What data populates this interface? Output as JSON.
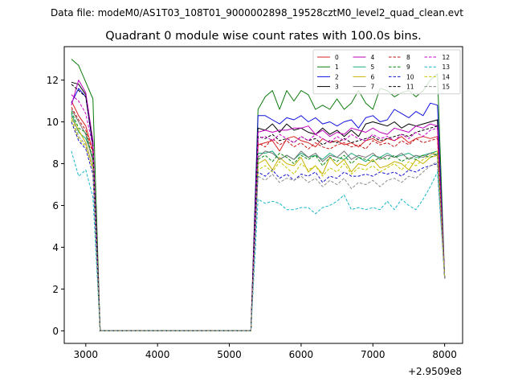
{
  "figure": {
    "suptitle": "Data file: modeM0/AS1T03_108T01_9000002898_19528cztM0_level2_quad_clean.evt"
  },
  "chart_data": {
    "type": "line",
    "title": "Quadrant 0 module wise count rates with 100.0s bins.",
    "xlabel": "",
    "ylabel": "",
    "x_offset_label": "+2.9509e8",
    "xlim": [
      2700,
      8250
    ],
    "ylim": [
      -0.6,
      13.6
    ],
    "x_ticks": [
      3000,
      4000,
      5000,
      6000,
      7000,
      8000
    ],
    "x_tick_labels": [
      "3000",
      "4000",
      "5000",
      "6000",
      "7000",
      "8000"
    ],
    "y_ticks": [
      0,
      2,
      4,
      6,
      8,
      10,
      12
    ],
    "y_tick_labels": [
      "0",
      "2",
      "4",
      "6",
      "8",
      "10",
      "12"
    ],
    "legend_position": "top-right",
    "legend_columns": 4,
    "gap": {
      "start": 3200,
      "end": 5300,
      "value": 0
    },
    "end_values": {
      "x": 8000,
      "value": 2.5
    },
    "x_seg1": [
      2800,
      2900,
      3000,
      3100
    ],
    "x_seg2": [
      5400,
      5500,
      5600,
      5700,
      5800,
      5900,
      6000,
      6100,
      6200,
      6300,
      6400,
      6500,
      6600,
      6700,
      6800,
      6900,
      7000,
      7100,
      7200,
      7300,
      7400,
      7500,
      7600,
      7700,
      7800,
      7900
    ],
    "series": [
      {
        "name": "0",
        "color": "#d62020",
        "dash": "solid",
        "seg1": [
          11.0,
          10.3,
          9.8,
          8.6
        ],
        "seg2": [
          8.9,
          9.0,
          9.1,
          8.6,
          9.2,
          9.3,
          9.1,
          9.0,
          8.8,
          9.2,
          9.0,
          9.1,
          8.9,
          9.0,
          8.8,
          9.1,
          9.2,
          9.0,
          9.2,
          9.1,
          9.3,
          9.0,
          9.2,
          9.3,
          9.2,
          9.3
        ]
      },
      {
        "name": "1",
        "color": "#0a7a0a",
        "dash": "solid",
        "seg1": [
          13.0,
          12.7,
          11.9,
          11.1
        ],
        "seg2": [
          10.6,
          11.2,
          11.5,
          10.6,
          11.5,
          11.0,
          11.5,
          11.3,
          10.6,
          10.8,
          10.6,
          11.1,
          10.6,
          10.9,
          11.5,
          10.9,
          10.6,
          11.6,
          11.5,
          11.2,
          11.4,
          11.5,
          11.2,
          11.5,
          12.0,
          12.3
        ]
      },
      {
        "name": "2",
        "color": "#1010e0",
        "dash": "solid",
        "seg1": [
          10.9,
          11.6,
          11.2,
          8.8
        ],
        "seg2": [
          10.3,
          10.3,
          10.1,
          9.9,
          10.2,
          10.1,
          10.3,
          10.0,
          10.2,
          9.9,
          10.0,
          9.8,
          10.0,
          10.1,
          9.7,
          10.2,
          10.3,
          10.0,
          10.1,
          10.6,
          10.4,
          10.2,
          10.5,
          10.3,
          10.9,
          10.8
        ]
      },
      {
        "name": "3",
        "color": "#000000",
        "dash": "solid",
        "seg1": [
          11.9,
          11.8,
          11.3,
          9.0
        ],
        "seg2": [
          9.7,
          9.6,
          9.9,
          9.5,
          9.9,
          9.6,
          9.7,
          9.5,
          9.4,
          9.7,
          9.4,
          9.6,
          9.3,
          9.6,
          9.3,
          9.9,
          10.0,
          9.9,
          9.8,
          10.0,
          9.7,
          9.9,
          9.8,
          9.9,
          10.0,
          10.1
        ]
      },
      {
        "name": "4",
        "color": "#bb00bb",
        "dash": "solid",
        "seg1": [
          10.8,
          12.0,
          11.4,
          9.1
        ],
        "seg2": [
          9.5,
          9.6,
          9.5,
          9.6,
          9.6,
          9.7,
          9.7,
          9.8,
          9.4,
          9.6,
          9.3,
          9.5,
          9.4,
          9.7,
          9.6,
          9.5,
          9.7,
          9.5,
          9.4,
          9.7,
          9.6,
          9.5,
          9.8,
          9.7,
          9.9,
          9.8
        ]
      },
      {
        "name": "5",
        "color": "#1aaa7a",
        "dash": "solid",
        "seg1": [
          10.4,
          9.5,
          9.2,
          8.3
        ],
        "seg2": [
          8.5,
          8.5,
          8.6,
          8.2,
          8.4,
          8.2,
          8.5,
          8.3,
          8.4,
          8.2,
          8.5,
          8.3,
          8.2,
          8.5,
          8.3,
          8.1,
          8.4,
          8.3,
          8.5,
          8.3,
          8.4,
          8.5,
          8.3,
          8.4,
          8.5,
          8.6
        ]
      },
      {
        "name": "6",
        "color": "#c9b200",
        "dash": "solid",
        "seg1": [
          10.2,
          9.6,
          9.0,
          7.8
        ],
        "seg2": [
          8.0,
          8.2,
          7.7,
          8.3,
          8.0,
          7.9,
          8.3,
          7.6,
          7.9,
          7.5,
          8.3,
          7.9,
          8.2,
          7.6,
          8.0,
          7.9,
          8.2,
          7.8,
          7.9,
          8.1,
          8.0,
          7.7,
          8.2,
          8.0,
          8.3,
          8.4
        ]
      },
      {
        "name": "7",
        "color": "#707070",
        "dash": "solid",
        "seg1": [
          10.6,
          10.0,
          9.4,
          8.1
        ],
        "seg2": [
          8.3,
          8.6,
          8.5,
          8.2,
          8.4,
          8.2,
          8.6,
          8.3,
          8.5,
          8.1,
          8.4,
          8.3,
          8.6,
          8.2,
          8.4,
          8.3,
          8.5,
          8.2,
          8.4,
          8.3,
          8.5,
          8.2,
          8.4,
          8.3,
          8.5,
          8.4
        ]
      },
      {
        "name": "8",
        "color": "#c41414",
        "dash": "dashed",
        "seg1": [
          10.7,
          10.1,
          9.6,
          8.5
        ],
        "seg2": [
          9.0,
          8.8,
          9.2,
          8.9,
          9.1,
          8.8,
          9.0,
          8.7,
          9.0,
          8.8,
          8.7,
          8.9,
          9.0,
          8.8,
          8.9,
          8.7,
          9.1,
          8.9,
          9.0,
          8.8,
          9.1,
          8.9,
          9.2,
          9.0,
          9.1,
          9.2
        ]
      },
      {
        "name": "9",
        "color": "#0d8a0d",
        "dash": "dashed",
        "seg1": [
          10.5,
          9.7,
          9.5,
          8.2
        ],
        "seg2": [
          8.2,
          8.4,
          8.1,
          8.5,
          8.3,
          8.0,
          8.4,
          8.2,
          8.4,
          7.9,
          8.3,
          8.1,
          8.4,
          8.0,
          8.3,
          8.2,
          8.1,
          8.3,
          8.2,
          8.4,
          8.1,
          8.3,
          8.2,
          8.4,
          8.3,
          8.5
        ]
      },
      {
        "name": "10",
        "color": "#1414cc",
        "dash": "dashed",
        "seg1": [
          10.0,
          9.1,
          8.7,
          7.5
        ],
        "seg2": [
          7.6,
          7.4,
          7.7,
          7.3,
          7.5,
          7.2,
          7.5,
          7.4,
          7.6,
          7.1,
          7.4,
          7.3,
          7.6,
          7.4,
          7.4,
          7.5,
          7.4,
          7.6,
          7.5,
          7.6,
          7.4,
          7.7,
          7.6,
          7.8,
          7.9,
          8.0
        ]
      },
      {
        "name": "11",
        "color": "#000000",
        "dash": "dashed",
        "seg1": [
          11.8,
          11.5,
          11.2,
          8.9
        ],
        "seg2": [
          9.3,
          9.2,
          9.4,
          9.1,
          9.2,
          9.0,
          9.3,
          9.1,
          9.2,
          8.9,
          9.1,
          9.0,
          9.2,
          9.0,
          9.1,
          9.2,
          9.3,
          9.1,
          9.2,
          9.3,
          9.4,
          9.3,
          9.5,
          9.6,
          9.7,
          9.8
        ]
      },
      {
        "name": "12",
        "color": "#cc00cc",
        "dash": "dashed",
        "seg1": [
          11.3,
          11.0,
          10.4,
          8.8
        ],
        "seg2": [
          9.2,
          9.3,
          9.1,
          9.4,
          9.2,
          9.0,
          9.3,
          9.1,
          9.4,
          9.2,
          9.0,
          9.3,
          9.1,
          9.4,
          9.2,
          9.1,
          9.4,
          9.2,
          9.3,
          9.1,
          9.4,
          9.2,
          9.5,
          9.3,
          9.6,
          9.7
        ]
      },
      {
        "name": "13",
        "color": "#18b8c8",
        "dash": "dashed",
        "seg1": [
          8.6,
          7.4,
          7.7,
          6.4
        ],
        "seg2": [
          6.3,
          6.1,
          6.2,
          6.1,
          5.8,
          5.8,
          5.9,
          5.9,
          5.6,
          5.9,
          6.0,
          6.2,
          6.5,
          5.8,
          5.9,
          5.8,
          5.9,
          5.8,
          6.2,
          5.8,
          6.3,
          6.0,
          5.8,
          6.3,
          6.9,
          7.6
        ]
      },
      {
        "name": "14",
        "color": "#c8c800",
        "dash": "dashed",
        "seg1": [
          10.1,
          9.2,
          8.8,
          7.7
        ],
        "seg2": [
          7.7,
          7.9,
          7.6,
          8.1,
          7.8,
          7.5,
          8.0,
          7.7,
          7.9,
          7.4,
          7.8,
          7.6,
          8.0,
          7.5,
          7.8,
          7.7,
          7.9,
          7.6,
          7.8,
          8.0,
          7.7,
          8.1,
          7.9,
          8.2,
          8.4,
          8.6
        ]
      },
      {
        "name": "15",
        "color": "#8c8c8c",
        "dash": "dashed",
        "seg1": [
          10.3,
          9.3,
          8.9,
          7.9
        ],
        "seg2": [
          7.4,
          7.2,
          7.5,
          7.1,
          7.3,
          7.2,
          7.4,
          7.1,
          7.3,
          6.9,
          7.2,
          7.0,
          7.3,
          6.8,
          7.1,
          7.0,
          7.2,
          6.9,
          7.2,
          7.3,
          7.1,
          7.4,
          7.3,
          7.6,
          7.9,
          8.1
        ]
      }
    ]
  }
}
